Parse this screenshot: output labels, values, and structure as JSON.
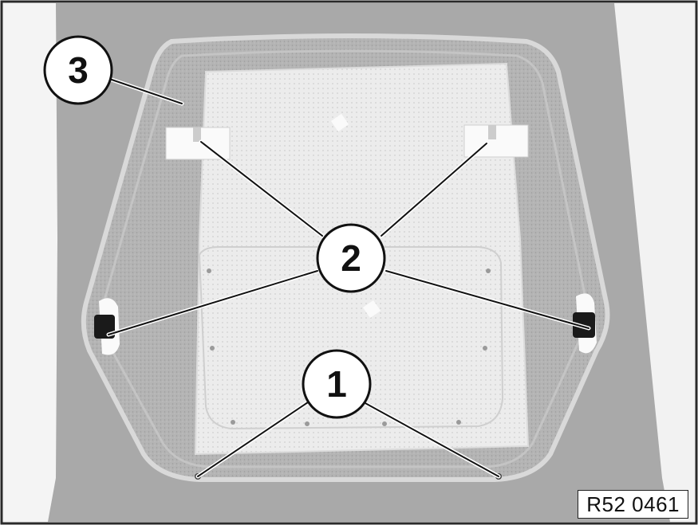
{
  "figure": {
    "reference_code": "R52 0461",
    "callouts": [
      {
        "number": "1",
        "meaning": ""
      },
      {
        "number": "2",
        "meaning": ""
      },
      {
        "number": "3",
        "meaning": ""
      }
    ]
  },
  "colors": {
    "frame": "#2a2a2a",
    "background_panel": "#a8a8a8",
    "seat_outer": "#b8b8b8",
    "seat_rim": "#d8d8d8",
    "mesh_panel": "#e9e9e9",
    "clip_white": "#fafafa",
    "clip_dark": "#1a1a1a",
    "callout_fill": "#ffffff",
    "callout_stroke": "#111111"
  }
}
